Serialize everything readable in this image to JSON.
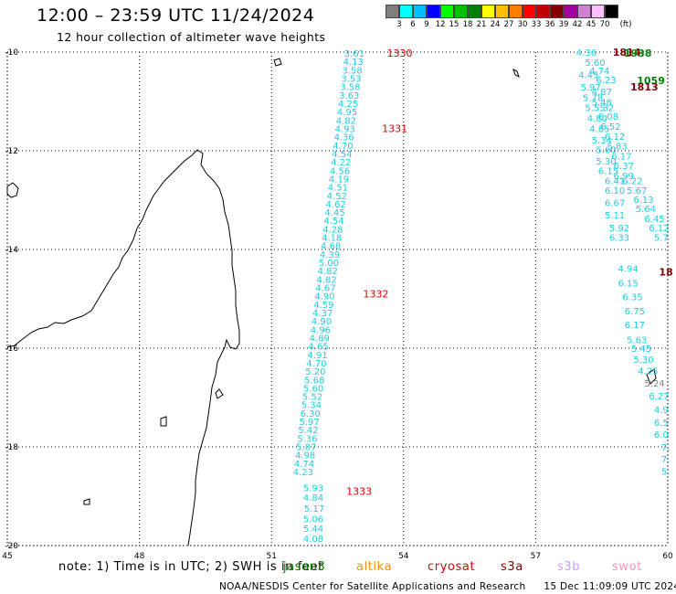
{
  "header": {
    "title": "12:00 – 23:59 UTC 11/24/2024",
    "subtitle": "12 hour collection of altimeter wave heights"
  },
  "legend": {
    "unit": "(ft)",
    "colors": [
      "#7f7f7f",
      "#00ffff",
      "#00bfff",
      "#0000ff",
      "#00ff00",
      "#00c000",
      "#008000",
      "#ffff00",
      "#ffc000",
      "#ff8000",
      "#ff0000",
      "#c00000",
      "#800000",
      "#a000a0",
      "#d080d0",
      "#ffc0ff",
      "#000000"
    ],
    "ticks": [
      "3",
      "6",
      "9",
      "12",
      "15",
      "18",
      "21",
      "24",
      "27",
      "30",
      "33",
      "36",
      "39",
      "42",
      "45",
      "70"
    ]
  },
  "map": {
    "lon_range": [
      45,
      60
    ],
    "lat_range": [
      -20,
      -10
    ],
    "lon_ticks": [
      "45",
      "48",
      "51",
      "54",
      "57",
      "60"
    ],
    "lat_ticks": [
      "-10",
      "-12",
      "-14",
      "-16",
      "-18",
      "-20"
    ],
    "track_color": "#1ecbe1",
    "pass_label_color": "#dd0000",
    "passes": [
      {
        "label": "1330",
        "lon": 53.62,
        "lat": -10.02
      },
      {
        "label": "1331",
        "lon": 53.51,
        "lat": -11.55
      },
      {
        "label": "1332",
        "lon": 53.08,
        "lat": -14.9
      },
      {
        "label": "1333",
        "lon": 52.7,
        "lat": -18.9
      }
    ],
    "track_a": {
      "lon_start": 52.88,
      "lat_start": -10.02,
      "lon_end": 51.72,
      "lat_end": -18.5,
      "values": [
        "3.61",
        "4.13",
        "3.58",
        "3.53",
        "3.58",
        "3.63",
        "4.25",
        "4.95",
        "4.82",
        "4.93",
        "4.36",
        "4.70",
        "4.54",
        "4.22",
        "4.56",
        "4.19",
        "4.51",
        "4.52",
        "4.62",
        "4.45",
        "4.54",
        "4.28",
        "4.18",
        "4.68",
        "4.39",
        "5.00",
        "4.82",
        "4.82",
        "4.67",
        "4.90",
        "4.59",
        "4.37",
        "4.90",
        "4.96",
        "4.89",
        "4.65",
        "4.91",
        "4.70",
        "5.20",
        "5.68",
        "5.60",
        "5.52",
        "5.34",
        "6.30",
        "5.97",
        "5.42",
        "5.36",
        "5.87",
        "4.98",
        "4.74",
        "4.23"
      ]
    },
    "track_a_tail": [
      {
        "v": "5.93",
        "lon": 51.95,
        "lat": -18.82
      },
      {
        "v": "4.84",
        "lon": 51.95,
        "lat": -19.02
      },
      {
        "v": "5.17",
        "lon": 51.97,
        "lat": -19.24
      },
      {
        "v": "5.06",
        "lon": 51.95,
        "lat": -19.45
      },
      {
        "v": "5.44",
        "lon": 51.95,
        "lat": -19.65
      },
      {
        "v": "4.08",
        "lon": 51.95,
        "lat": -19.85
      }
    ],
    "track_b": [
      {
        "v": "4.36",
        "lon": 58.15,
        "lat": -10.0
      },
      {
        "v": "5.60",
        "lon": 58.35,
        "lat": -10.2
      },
      {
        "v": "4.74",
        "lon": 58.45,
        "lat": -10.37
      },
      {
        "v": "4.45",
        "lon": 58.2,
        "lat": -10.45
      },
      {
        "v": "6.23",
        "lon": 58.6,
        "lat": -10.56
      },
      {
        "v": "5.97",
        "lon": 58.25,
        "lat": -10.7
      },
      {
        "v": "4.87",
        "lon": 58.5,
        "lat": -10.8
      },
      {
        "v": "5.78",
        "lon": 58.3,
        "lat": -10.92
      },
      {
        "v": "5.48",
        "lon": 58.5,
        "lat": -11.01
      },
      {
        "v": "5.55",
        "lon": 58.35,
        "lat": -11.12
      },
      {
        "v": "5.32",
        "lon": 58.55,
        "lat": -11.12
      },
      {
        "v": "4.80",
        "lon": 58.4,
        "lat": -11.33
      },
      {
        "v": "6.08",
        "lon": 58.65,
        "lat": -11.3
      },
      {
        "v": "4.85",
        "lon": 58.45,
        "lat": -11.55
      },
      {
        "v": "6.52",
        "lon": 58.7,
        "lat": -11.5
      },
      {
        "v": "6.12",
        "lon": 58.8,
        "lat": -11.7
      },
      {
        "v": "5.34",
        "lon": 58.5,
        "lat": -11.78
      },
      {
        "v": "5.83",
        "lon": 58.85,
        "lat": -11.9
      },
      {
        "v": "5.60",
        "lon": 58.6,
        "lat": -11.97
      },
      {
        "v": "6.17",
        "lon": 58.95,
        "lat": -12.1
      },
      {
        "v": "5.30",
        "lon": 58.6,
        "lat": -12.2
      },
      {
        "v": "6.37",
        "lon": 59.0,
        "lat": -12.3
      },
      {
        "v": "6.15",
        "lon": 58.65,
        "lat": -12.4
      },
      {
        "v": "6.99",
        "lon": 59.0,
        "lat": -12.5
      },
      {
        "v": "6.41",
        "lon": 58.8,
        "lat": -12.6
      },
      {
        "v": "6.22",
        "lon": 59.2,
        "lat": -12.6
      },
      {
        "v": "6.10",
        "lon": 58.8,
        "lat": -12.8
      },
      {
        "v": "5.67",
        "lon": 59.3,
        "lat": -12.8
      },
      {
        "v": "6.13",
        "lon": 59.45,
        "lat": -12.98
      },
      {
        "v": "6.67",
        "lon": 58.8,
        "lat": -13.05
      },
      {
        "v": "5.64",
        "lon": 59.5,
        "lat": -13.17
      },
      {
        "v": "5.11",
        "lon": 58.8,
        "lat": -13.3
      },
      {
        "v": "6.45",
        "lon": 59.7,
        "lat": -13.37
      },
      {
        "v": "5.92",
        "lon": 58.9,
        "lat": -13.56
      },
      {
        "v": "6.12",
        "lon": 59.8,
        "lat": -13.56
      },
      {
        "v": "6.33",
        "lon": 58.9,
        "lat": -13.75
      },
      {
        "v": "5.7",
        "lon": 59.85,
        "lat": -13.75
      },
      {
        "v": "4.94",
        "lon": 59.1,
        "lat": -14.38
      },
      {
        "v": "6.15",
        "lon": 59.1,
        "lat": -14.68
      },
      {
        "v": "6.35",
        "lon": 59.2,
        "lat": -14.95
      },
      {
        "v": "6.75",
        "lon": 59.25,
        "lat": -15.24
      },
      {
        "v": "6.17",
        "lon": 59.25,
        "lat": -15.52
      },
      {
        "v": "5.63",
        "lon": 59.3,
        "lat": -15.82
      },
      {
        "v": "5.45",
        "lon": 59.4,
        "lat": -16.0
      },
      {
        "v": "5.30",
        "lon": 59.45,
        "lat": -16.22
      },
      {
        "v": "4.25",
        "lon": 59.55,
        "lat": -16.45
      },
      {
        "v": "6.27",
        "lon": 59.8,
        "lat": -16.96
      },
      {
        "v": "4.9",
        "lon": 59.85,
        "lat": -17.24
      },
      {
        "v": "6.5",
        "lon": 59.85,
        "lat": -17.5
      },
      {
        "v": "6.0",
        "lon": 59.85,
        "lat": -17.74
      },
      {
        "v": "7.",
        "lon": 59.95,
        "lat": -18.0
      },
      {
        "v": "7.",
        "lon": 59.95,
        "lat": -18.24
      },
      {
        "v": "5.",
        "lon": 59.95,
        "lat": -18.49
      }
    ],
    "gray_value": {
      "v": "5.24",
      "lon": 59.7,
      "lat": -16.7
    },
    "other_labels": [
      {
        "v": "1814",
        "color": "#800000",
        "lon": 58.75,
        "lat": -10.0
      },
      {
        "v": "1938",
        "color": "#008000",
        "lon": 59.0,
        "lat": -10.02
      },
      {
        "v": "1059",
        "color": "#008000",
        "lon": 59.3,
        "lat": -10.57
      },
      {
        "v": "1813",
        "color": "#800000",
        "lon": 59.15,
        "lat": -10.7
      },
      {
        "v": "18",
        "color": "#800000",
        "lon": 59.8,
        "lat": -14.45
      }
    ]
  },
  "footer": {
    "note": "note:  1) Time is in UTC;  2) SWH is in feet",
    "satellites": [
      {
        "name": "jason3",
        "color": "#008000"
      },
      {
        "name": "altika",
        "color": "#ff8c00"
      },
      {
        "name": "cryosat",
        "color": "#dd0000"
      },
      {
        "name": "s3a",
        "color": "#800000"
      },
      {
        "name": "s3b",
        "color": "#c8a0ff"
      },
      {
        "name": "swot",
        "color": "#ff90c8"
      }
    ],
    "credit": "NOAA/NESDIS Center for Satellite Applications and Research",
    "timestamp": "15 Dec 11:09:09 UTC 2024"
  }
}
